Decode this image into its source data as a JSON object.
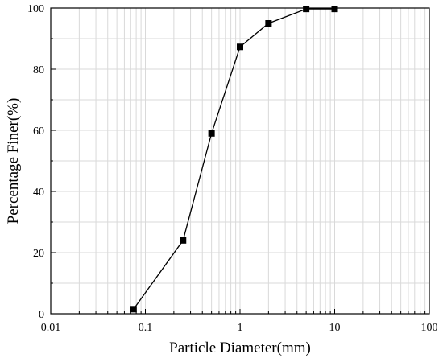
{
  "chart_data": {
    "type": "line",
    "xlabel": "Particle Diameter(mm)",
    "ylabel": "Percentage Finer(%)",
    "x_scale": "log",
    "xlim": [
      0.01,
      100
    ],
    "ylim": [
      0,
      100
    ],
    "grid": true,
    "x_ticks": [
      "0.01",
      "0.1",
      "1",
      "10",
      "100"
    ],
    "y_ticks": [
      "0",
      "20",
      "40",
      "60",
      "80",
      "100"
    ],
    "series": [
      {
        "x": [
          0.075,
          0.25,
          0.5,
          1,
          2,
          5,
          10
        ],
        "y": [
          1.5,
          24,
          59,
          87.3,
          95,
          99.7,
          99.7
        ]
      }
    ],
    "colors": {
      "line": "#000000",
      "marker": "#000000",
      "grid": "#d9d9d9"
    }
  }
}
